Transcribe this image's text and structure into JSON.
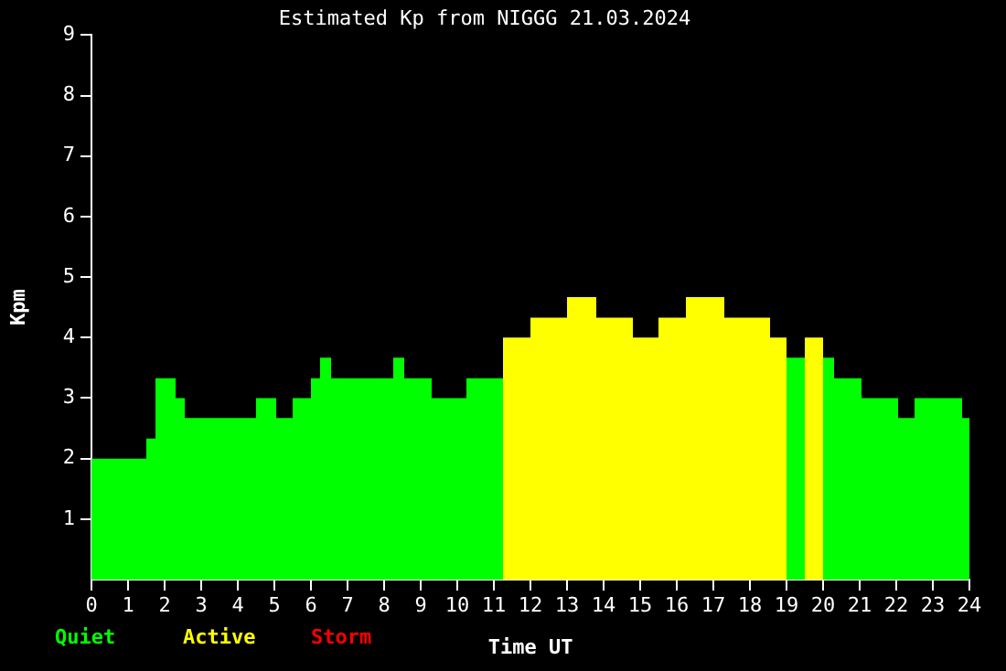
{
  "chart_data": {
    "type": "histogram",
    "title": "Estimated Kp from NIGGG 21.03.2024",
    "xlabel": "Time UT",
    "ylabel": "Kpm",
    "bins": [
      0,
      1.5,
      1.75,
      2.3,
      2.55,
      4.5,
      5.05,
      5.5,
      6,
      6.25,
      6.55,
      8.25,
      8.55,
      9.3,
      10.25,
      11.25,
      12,
      13,
      13.8,
      14.8,
      15.5,
      16.25,
      17.3,
      18.55,
      19,
      19.5,
      20,
      20.3,
      21.05,
      22.05,
      22.5,
      23.8,
      24
    ],
    "series": [
      {
        "name": "Quiet",
        "color": "#00ff00",
        "values": [
          2,
          2.33,
          3.33,
          3,
          2.67,
          3,
          2.67,
          3,
          3.33,
          3.67,
          3.33,
          3.67,
          3.33,
          3,
          3.33,
          null,
          null,
          null,
          null,
          null,
          null,
          null,
          null,
          null,
          3.67,
          null,
          3.67,
          3.33,
          3,
          2.67,
          3,
          2.67
        ]
      },
      {
        "name": "Active",
        "color": "#ffff00",
        "values": [
          null,
          null,
          null,
          null,
          null,
          null,
          null,
          null,
          null,
          null,
          null,
          null,
          null,
          null,
          null,
          4,
          4.33,
          4.67,
          4.33,
          4,
          4.33,
          4.67,
          4.33,
          4,
          null,
          4,
          null,
          null,
          null,
          null,
          null,
          null
        ]
      }
    ],
    "annotations": [
      "Storm"
    ],
    "xlim": [
      0,
      24
    ],
    "xticks": [
      0,
      1,
      2,
      3,
      4,
      5,
      6,
      7,
      8,
      9,
      10,
      11,
      12,
      13,
      14,
      15,
      16,
      17,
      18,
      19,
      20,
      21,
      22,
      23,
      24
    ],
    "ylim": [
      0,
      9
    ],
    "yticks": [
      1,
      2,
      3,
      4,
      5,
      6,
      7,
      8,
      9
    ],
    "legend": "bottom left"
  }
}
